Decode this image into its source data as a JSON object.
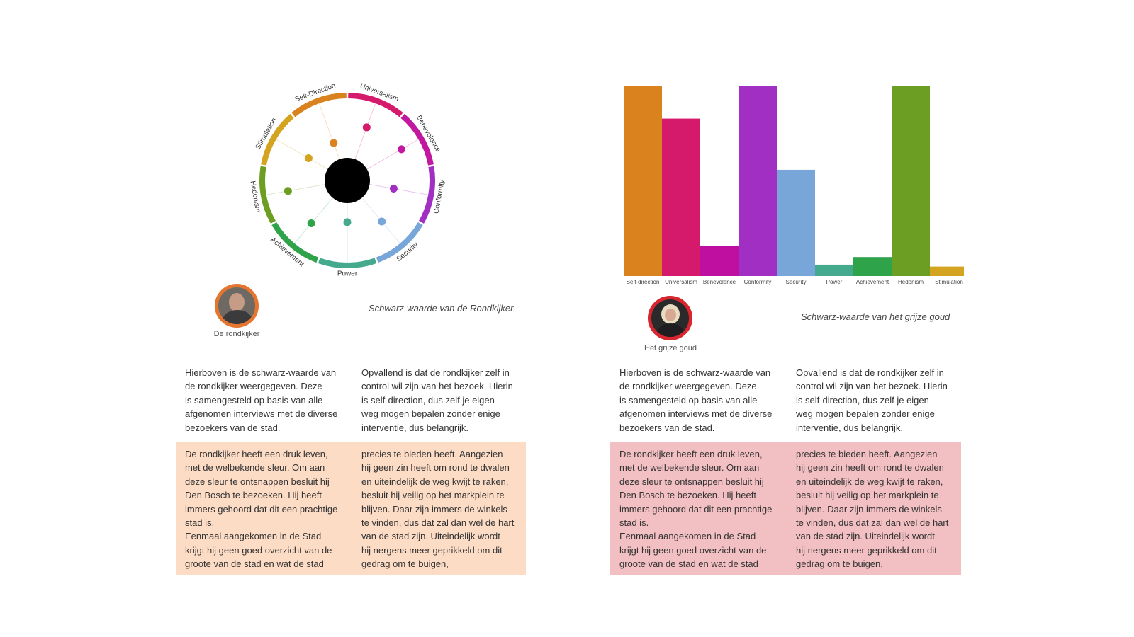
{
  "left": {
    "chart_title": "Schwarz-waarde van de Rondkijker",
    "persona_caption": "De rondkijker",
    "persona_ring_color": "#e6762f",
    "panel_color": "#fddcc6",
    "intro_col1": "Hierboven is de schwarz-waarde van\nde rondkijker weergegeven. Deze\nis samengesteld op basis van alle\nafgenomen interviews met de diverse\nbezoekers van de stad.",
    "intro_col2": "Opvallend is dat de rondkijker zelf in\ncontrol wil zijn van het bezoek. Hierin\nis self-direction, dus zelf je eigen\nweg mogen bepalen zonder enige\ninterventie, dus belangrijk.",
    "story_col1": "De rondkijker heeft een druk leven,\nmet de welbekende sleur. Om aan\ndeze sleur te ontsnappen besluit hij\nDen Bosch te bezoeken. Hij heeft\nimmers gehoord dat dit een prachtige\nstad is.\nEenmaal aangekomen in de Stad\nkrijgt hij geen goed overzicht van de\ngroote van de stad en wat de stad",
    "story_col2": "precies te bieden heeft. Aangezien\nhij geen zin heeft om rond te dwalen\nen uiteindelijk de weg kwijt te raken,\nbesluit hij veilig op het markplein te\nblijven. Daar zijn immers de winkels\nte vinden, dus dat zal dan wel de hart\nvan de stad zijn. Uiteindelijk wordt\nhij nergens meer geprikkeld om dit\ngedrag om te buigen,"
  },
  "right": {
    "chart_title": "Schwarz-waarde van het grijze goud",
    "persona_caption": "Het grijze goud",
    "persona_ring_color": "#d8262e",
    "panel_color": "#f2bfc2",
    "intro_col1": "Hierboven is de schwarz-waarde van\nde rondkijker weergegeven. Deze\nis samengesteld op basis van alle\nafgenomen interviews met de diverse\nbezoekers van de stad.",
    "intro_col2": "Opvallend is dat de rondkijker zelf in\ncontrol wil zijn van het bezoek. Hierin\nis self-direction, dus zelf je eigen\nweg mogen bepalen zonder enige\ninterventie, dus belangrijk.",
    "story_col1": "De rondkijker heeft een druk leven,\nmet de welbekende sleur. Om aan\ndeze sleur te ontsnappen besluit hij\nDen Bosch te bezoeken. Hij heeft\nimmers gehoord dat dit een prachtige\nstad is.\nEenmaal aangekomen in de Stad\nkrijgt hij geen goed overzicht van de\ngroote van de stad en wat de stad",
    "story_col2": "precies te bieden heeft. Aangezien\nhij geen zin heeft om rond te dwalen\nen uiteindelijk de weg kwijt te raken,\nbesluit hij veilig op het markplein te\nblijven. Daar zijn immers de winkels\nte vinden, dus dat zal dan wel de hart\nvan de stad zijn. Uiteindelijk wordt\nhij nergens meer geprikkeld om dit\ngedrag om te buigen,"
  },
  "chart_data": [
    {
      "type": "radial",
      "title": "",
      "segments": [
        {
          "label": "Universalism",
          "color": "#d61a6b",
          "value": 0.57
        },
        {
          "label": "Benevolence",
          "color": "#c2189f",
          "value": 0.67
        },
        {
          "label": "Conformity",
          "color": "#a12fc4",
          "value": 0.41
        },
        {
          "label": "Security",
          "color": "#78a6d8",
          "value": 0.52
        },
        {
          "label": "Power",
          "color": "#45a98e",
          "value": 0.32
        },
        {
          "label": "Achievement",
          "color": "#2ea34a",
          "value": 0.56
        },
        {
          "label": "Hedonism",
          "color": "#6b9e22",
          "value": 0.63
        },
        {
          "label": "Stimulation",
          "color": "#d4a320",
          "value": 0.37
        },
        {
          "label": "Self-Direction",
          "color": "#d9821e",
          "value": 0.29
        }
      ]
    },
    {
      "type": "bar",
      "title": "",
      "categories": [
        "Self-direction",
        "Universalism",
        "Benevolence",
        "Conformity",
        "Security",
        "Power",
        "Achievement",
        "Hedonism",
        "Stimulation"
      ],
      "values": [
        100,
        83,
        16,
        100,
        56,
        6,
        10,
        100,
        5
      ],
      "colors": [
        "#d9821e",
        "#d61a6b",
        "#bf0fa0",
        "#a12fc4",
        "#78a6d8",
        "#45a98e",
        "#2ea34a",
        "#6b9e22",
        "#d4a320"
      ],
      "ylim": [
        0,
        100
      ]
    }
  ]
}
